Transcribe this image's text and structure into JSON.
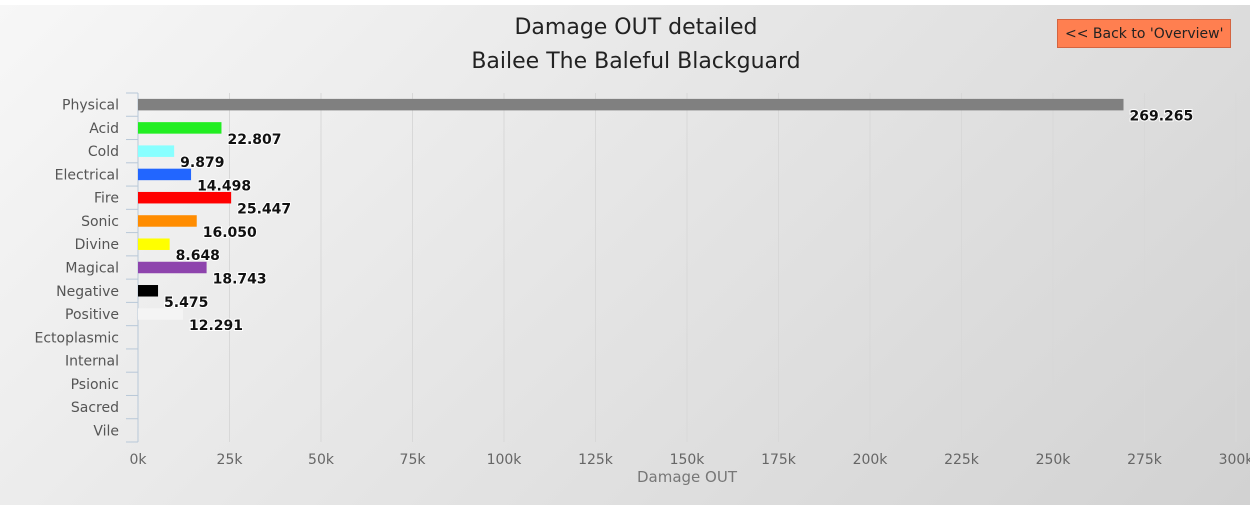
{
  "back_button": {
    "label": "<< Back to 'Overview'",
    "color": "#ff7f50"
  },
  "chart_data": {
    "type": "bar",
    "orientation": "horizontal",
    "title": "Damage OUT detailed",
    "subtitle": "Bailee The Baleful Blackguard",
    "xlabel": "Damage OUT",
    "ylabel": "",
    "xlim": [
      0,
      300000
    ],
    "x_ticks": [
      0,
      25000,
      50000,
      75000,
      100000,
      125000,
      150000,
      175000,
      200000,
      225000,
      250000,
      275000,
      300000
    ],
    "x_tick_labels": [
      "0k",
      "25k",
      "50k",
      "75k",
      "100k",
      "125k",
      "150k",
      "175k",
      "200k",
      "225k",
      "250k",
      "275k",
      "300k"
    ],
    "grid": true,
    "categories": [
      "Physical",
      "Acid",
      "Cold",
      "Electrical",
      "Fire",
      "Sonic",
      "Divine",
      "Magical",
      "Negative",
      "Positive",
      "Ectoplasmic",
      "Internal",
      "Psionic",
      "Sacred",
      "Vile"
    ],
    "values": [
      269265,
      22807,
      9879,
      14498,
      25447,
      16050,
      8648,
      18743,
      5475,
      12291,
      null,
      null,
      null,
      null,
      null
    ],
    "data_labels": [
      "269.265",
      "22.807",
      "9.879",
      "14.498",
      "25.447",
      "16.050",
      "8.648",
      "18.743",
      "5.475",
      "12.291",
      "",
      "",
      "",
      "",
      ""
    ],
    "colors": [
      "#808080",
      "#22ee22",
      "#88ffff",
      "#2266ff",
      "#ff0000",
      "#ff8c00",
      "#ffff00",
      "#8e44ad",
      "#000000",
      "#f4f4f4",
      "",
      "",
      "",
      "",
      ""
    ]
  }
}
